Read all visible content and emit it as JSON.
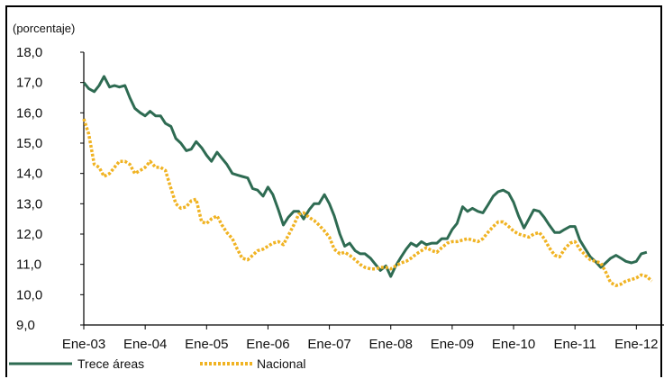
{
  "chart_data": {
    "type": "line",
    "title": "",
    "ylabel": "(porcentaje)",
    "xlabel": "",
    "ylim": [
      9.0,
      18.0
    ],
    "yticks": [
      "9,0",
      "10,0",
      "11,0",
      "12,0",
      "13,0",
      "14,0",
      "15,0",
      "16,0",
      "17,0",
      "18,0"
    ],
    "x_tick_labels": [
      "Ene-03",
      "Ene-04",
      "Ene-05",
      "Ene-06",
      "Ene-07",
      "Ene-08",
      "Ene-09",
      "Ene-10",
      "Ene-11",
      "Ene-12"
    ],
    "x_range": [
      2003.0,
      2012.45
    ],
    "grid": false,
    "legend_position": "bottom-left",
    "series": [
      {
        "name": "Trece áreas",
        "color": "#2e6b52",
        "style": "solid",
        "points": [
          [
            2003.0,
            17.0
          ],
          [
            2003.08,
            16.8
          ],
          [
            2003.17,
            16.7
          ],
          [
            2003.25,
            16.9
          ],
          [
            2003.33,
            17.2
          ],
          [
            2003.42,
            16.85
          ],
          [
            2003.5,
            16.9
          ],
          [
            2003.58,
            16.85
          ],
          [
            2003.67,
            16.9
          ],
          [
            2003.75,
            16.5
          ],
          [
            2003.83,
            16.15
          ],
          [
            2003.92,
            16.0
          ],
          [
            2004.0,
            15.9
          ],
          [
            2004.08,
            16.05
          ],
          [
            2004.17,
            15.9
          ],
          [
            2004.25,
            15.9
          ],
          [
            2004.33,
            15.65
          ],
          [
            2004.42,
            15.55
          ],
          [
            2004.5,
            15.15
          ],
          [
            2004.58,
            15.0
          ],
          [
            2004.67,
            14.75
          ],
          [
            2004.75,
            14.8
          ],
          [
            2004.83,
            15.05
          ],
          [
            2004.92,
            14.85
          ],
          [
            2005.0,
            14.6
          ],
          [
            2005.08,
            14.4
          ],
          [
            2005.17,
            14.7
          ],
          [
            2005.25,
            14.5
          ],
          [
            2005.33,
            14.3
          ],
          [
            2005.42,
            14.0
          ],
          [
            2005.5,
            13.95
          ],
          [
            2005.58,
            13.9
          ],
          [
            2005.67,
            13.85
          ],
          [
            2005.75,
            13.5
          ],
          [
            2005.83,
            13.45
          ],
          [
            2005.92,
            13.25
          ],
          [
            2006.0,
            13.55
          ],
          [
            2006.08,
            13.3
          ],
          [
            2006.17,
            12.8
          ],
          [
            2006.25,
            12.3
          ],
          [
            2006.33,
            12.55
          ],
          [
            2006.42,
            12.75
          ],
          [
            2006.5,
            12.75
          ],
          [
            2006.58,
            12.5
          ],
          [
            2006.67,
            12.8
          ],
          [
            2006.75,
            13.0
          ],
          [
            2006.83,
            13.0
          ],
          [
            2006.92,
            13.3
          ],
          [
            2007.0,
            13.0
          ],
          [
            2007.08,
            12.6
          ],
          [
            2007.17,
            12.0
          ],
          [
            2007.25,
            11.6
          ],
          [
            2007.33,
            11.7
          ],
          [
            2007.42,
            11.45
          ],
          [
            2007.5,
            11.35
          ],
          [
            2007.58,
            11.35
          ],
          [
            2007.67,
            11.2
          ],
          [
            2007.75,
            11.0
          ],
          [
            2007.83,
            10.8
          ],
          [
            2007.92,
            10.95
          ],
          [
            2008.0,
            10.6
          ],
          [
            2008.08,
            10.95
          ],
          [
            2008.17,
            11.25
          ],
          [
            2008.25,
            11.5
          ],
          [
            2008.33,
            11.7
          ],
          [
            2008.42,
            11.6
          ],
          [
            2008.5,
            11.75
          ],
          [
            2008.58,
            11.65
          ],
          [
            2008.67,
            11.7
          ],
          [
            2008.75,
            11.7
          ],
          [
            2008.83,
            11.85
          ],
          [
            2008.92,
            11.85
          ],
          [
            2009.0,
            12.15
          ],
          [
            2009.08,
            12.35
          ],
          [
            2009.17,
            12.9
          ],
          [
            2009.25,
            12.75
          ],
          [
            2009.33,
            12.85
          ],
          [
            2009.42,
            12.75
          ],
          [
            2009.5,
            12.7
          ],
          [
            2009.58,
            12.95
          ],
          [
            2009.67,
            13.25
          ],
          [
            2009.75,
            13.4
          ],
          [
            2009.83,
            13.45
          ],
          [
            2009.92,
            13.35
          ],
          [
            2010.0,
            13.05
          ],
          [
            2010.08,
            12.6
          ],
          [
            2010.17,
            12.2
          ],
          [
            2010.25,
            12.5
          ],
          [
            2010.33,
            12.8
          ],
          [
            2010.42,
            12.75
          ],
          [
            2010.5,
            12.55
          ],
          [
            2010.58,
            12.3
          ],
          [
            2010.67,
            12.05
          ],
          [
            2010.75,
            12.05
          ],
          [
            2010.83,
            12.15
          ],
          [
            2010.92,
            12.25
          ],
          [
            2011.0,
            12.25
          ],
          [
            2011.08,
            11.8
          ],
          [
            2011.17,
            11.5
          ],
          [
            2011.25,
            11.25
          ],
          [
            2011.33,
            11.1
          ],
          [
            2011.42,
            10.9
          ],
          [
            2011.5,
            11.05
          ],
          [
            2011.58,
            11.2
          ],
          [
            2011.67,
            11.3
          ],
          [
            2011.75,
            11.2
          ],
          [
            2011.83,
            11.1
          ],
          [
            2011.92,
            11.05
          ],
          [
            2012.0,
            11.1
          ],
          [
            2012.08,
            11.35
          ],
          [
            2012.17,
            11.4
          ]
        ]
      },
      {
        "name": "Nacional",
        "color": "#f0b323",
        "style": "dotted",
        "points": [
          [
            2003.0,
            15.8
          ],
          [
            2003.08,
            15.3
          ],
          [
            2003.17,
            14.3
          ],
          [
            2003.25,
            14.2
          ],
          [
            2003.33,
            13.9
          ],
          [
            2003.42,
            14.0
          ],
          [
            2003.5,
            14.2
          ],
          [
            2003.58,
            14.4
          ],
          [
            2003.67,
            14.4
          ],
          [
            2003.75,
            14.3
          ],
          [
            2003.83,
            14.0
          ],
          [
            2003.92,
            14.1
          ],
          [
            2004.0,
            14.2
          ],
          [
            2004.08,
            14.4
          ],
          [
            2004.17,
            14.2
          ],
          [
            2004.25,
            14.2
          ],
          [
            2004.33,
            14.1
          ],
          [
            2004.42,
            13.5
          ],
          [
            2004.5,
            13.0
          ],
          [
            2004.58,
            12.85
          ],
          [
            2004.67,
            12.9
          ],
          [
            2004.75,
            13.1
          ],
          [
            2004.83,
            13.15
          ],
          [
            2004.92,
            12.4
          ],
          [
            2005.0,
            12.35
          ],
          [
            2005.08,
            12.5
          ],
          [
            2005.17,
            12.6
          ],
          [
            2005.25,
            12.3
          ],
          [
            2005.33,
            12.05
          ],
          [
            2005.42,
            11.85
          ],
          [
            2005.5,
            11.5
          ],
          [
            2005.58,
            11.2
          ],
          [
            2005.67,
            11.15
          ],
          [
            2005.75,
            11.3
          ],
          [
            2005.83,
            11.45
          ],
          [
            2005.92,
            11.5
          ],
          [
            2006.0,
            11.6
          ],
          [
            2006.08,
            11.7
          ],
          [
            2006.17,
            11.75
          ],
          [
            2006.25,
            11.65
          ],
          [
            2006.33,
            11.95
          ],
          [
            2006.42,
            12.3
          ],
          [
            2006.5,
            12.65
          ],
          [
            2006.58,
            12.7
          ],
          [
            2006.67,
            12.55
          ],
          [
            2006.75,
            12.45
          ],
          [
            2006.83,
            12.3
          ],
          [
            2006.92,
            12.1
          ],
          [
            2007.0,
            11.9
          ],
          [
            2007.08,
            11.5
          ],
          [
            2007.17,
            11.35
          ],
          [
            2007.25,
            11.4
          ],
          [
            2007.33,
            11.3
          ],
          [
            2007.42,
            11.15
          ],
          [
            2007.5,
            11.0
          ],
          [
            2007.58,
            10.9
          ],
          [
            2007.67,
            10.85
          ],
          [
            2007.75,
            10.85
          ],
          [
            2007.83,
            10.9
          ],
          [
            2007.92,
            10.9
          ],
          [
            2008.0,
            10.85
          ],
          [
            2008.08,
            10.95
          ],
          [
            2008.17,
            11.05
          ],
          [
            2008.25,
            11.1
          ],
          [
            2008.33,
            11.2
          ],
          [
            2008.42,
            11.35
          ],
          [
            2008.5,
            11.45
          ],
          [
            2008.58,
            11.55
          ],
          [
            2008.67,
            11.45
          ],
          [
            2008.75,
            11.4
          ],
          [
            2008.83,
            11.55
          ],
          [
            2008.92,
            11.7
          ],
          [
            2009.0,
            11.75
          ],
          [
            2009.08,
            11.75
          ],
          [
            2009.17,
            11.8
          ],
          [
            2009.25,
            11.85
          ],
          [
            2009.33,
            11.8
          ],
          [
            2009.42,
            11.75
          ],
          [
            2009.5,
            11.85
          ],
          [
            2009.58,
            12.05
          ],
          [
            2009.67,
            12.25
          ],
          [
            2009.75,
            12.4
          ],
          [
            2009.83,
            12.4
          ],
          [
            2009.92,
            12.25
          ],
          [
            2010.0,
            12.1
          ],
          [
            2010.08,
            12.0
          ],
          [
            2010.17,
            11.95
          ],
          [
            2010.25,
            11.9
          ],
          [
            2010.33,
            12.0
          ],
          [
            2010.42,
            12.05
          ],
          [
            2010.5,
            11.85
          ],
          [
            2010.58,
            11.55
          ],
          [
            2010.67,
            11.3
          ],
          [
            2010.75,
            11.25
          ],
          [
            2010.83,
            11.5
          ],
          [
            2010.92,
            11.7
          ],
          [
            2011.0,
            11.75
          ],
          [
            2011.08,
            11.5
          ],
          [
            2011.17,
            11.3
          ],
          [
            2011.25,
            11.15
          ],
          [
            2011.33,
            11.1
          ],
          [
            2011.42,
            11.05
          ],
          [
            2011.5,
            10.75
          ],
          [
            2011.58,
            10.4
          ],
          [
            2011.67,
            10.3
          ],
          [
            2011.75,
            10.35
          ],
          [
            2011.83,
            10.45
          ],
          [
            2011.92,
            10.5
          ],
          [
            2012.0,
            10.55
          ],
          [
            2012.08,
            10.65
          ],
          [
            2012.17,
            10.6
          ],
          [
            2012.25,
            10.45
          ]
        ]
      }
    ]
  }
}
